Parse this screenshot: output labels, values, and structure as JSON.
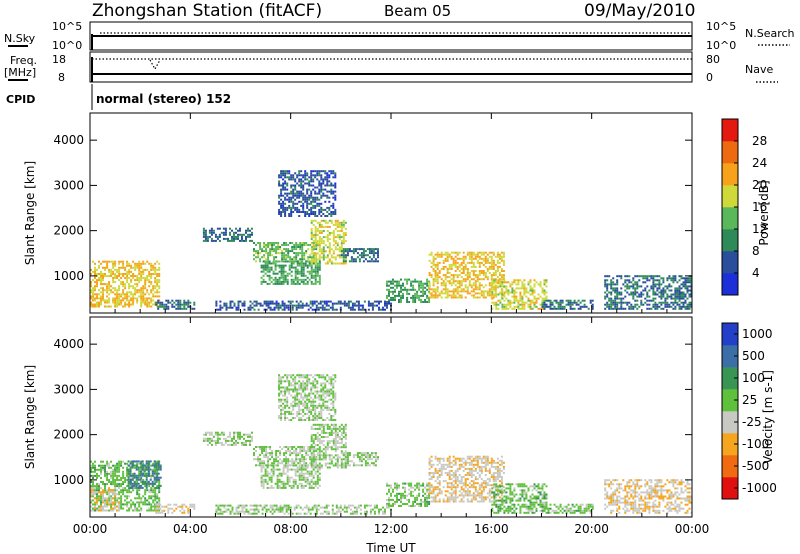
{
  "header": {
    "station": "Zhongshan Station (fitACF)",
    "beam": "Beam 05",
    "date": "09/May/2010"
  },
  "parameter_panel": {
    "nsky_label": "N.Sky",
    "nsearch_label": "N.Search",
    "freq_label_1": "Freq.",
    "freq_label_2": "[MHz]",
    "nave_label": "Nave",
    "cpid_label": "CPID",
    "cpid_value": "normal (stereo) 152",
    "nsky_ticks": [
      "10^5",
      "10^0"
    ],
    "nsearch_ticks": [
      "10^5",
      "10^0"
    ],
    "freq_ticks": [
      "18",
      "8"
    ],
    "nave_ticks": [
      "80",
      "0"
    ]
  },
  "colors": {
    "power_scale": [
      "#1d2fd8",
      "#2a4d9c",
      "#2e8a58",
      "#5ab85a",
      "#cfd93a",
      "#f7a21a",
      "#ee6a10",
      "#e41a10"
    ],
    "velocity_scale": [
      "#e01010",
      "#f06a12",
      "#f5a51e",
      "#c9c9c4",
      "#5fc03c",
      "#3a9555",
      "#3c6fa8",
      "#2440c8"
    ]
  },
  "chart_data": [
    {
      "type": "heatmap",
      "title": "",
      "xlabel": "",
      "ylabel": "Slant Range [km]",
      "x_tick_labels": [
        "00:00",
        "04:00",
        "08:00",
        "12:00",
        "16:00",
        "20:00",
        "00:00"
      ],
      "y_tick_labels": [
        "1000",
        "2000",
        "3000",
        "4000"
      ],
      "xlim": [
        0,
        24
      ],
      "ylim": [
        180,
        4600
      ],
      "colorbar": {
        "label": "Power [dB]",
        "ticks": [
          "4",
          "8",
          "12",
          "16",
          "20",
          "24",
          "28"
        ],
        "range": [
          0,
          32
        ]
      },
      "regions": [
        {
          "t0": 0.0,
          "t1": 2.8,
          "r0": 300,
          "r1": 1300,
          "value": 20
        },
        {
          "t0": 2.6,
          "t1": 4.2,
          "r0": 250,
          "r1": 450,
          "value": 8
        },
        {
          "t0": 4.5,
          "t1": 6.5,
          "r0": 1750,
          "r1": 2050,
          "value": 8
        },
        {
          "t0": 6.5,
          "t1": 9.0,
          "r0": 1300,
          "r1": 1750,
          "value": 14
        },
        {
          "t0": 6.8,
          "t1": 9.2,
          "r0": 800,
          "r1": 1300,
          "value": 12
        },
        {
          "t0": 8.8,
          "t1": 10.2,
          "r0": 1250,
          "r1": 2200,
          "value": 18
        },
        {
          "t0": 10.0,
          "t1": 11.5,
          "r0": 1300,
          "r1": 1600,
          "value": 8
        },
        {
          "t0": 11.8,
          "t1": 13.5,
          "r0": 400,
          "r1": 900,
          "value": 12
        },
        {
          "t0": 13.5,
          "t1": 16.5,
          "r0": 500,
          "r1": 1500,
          "value": 20
        },
        {
          "t0": 16.0,
          "t1": 18.2,
          "r0": 250,
          "r1": 900,
          "value": 18
        },
        {
          "t0": 18.0,
          "t1": 20.0,
          "r0": 250,
          "r1": 450,
          "value": 8
        },
        {
          "t0": 20.5,
          "t1": 24.0,
          "r0": 250,
          "r1": 1000,
          "value": 8
        },
        {
          "t0": 7.5,
          "t1": 9.8,
          "r0": 2300,
          "r1": 3300,
          "value": 6
        },
        {
          "t0": 5.0,
          "t1": 12.0,
          "r0": 230,
          "r1": 420,
          "value": 6
        }
      ]
    },
    {
      "type": "heatmap",
      "title": "",
      "xlabel": "Time UT",
      "ylabel": "Slant Range [km]",
      "x_tick_labels": [
        "00:00",
        "04:00",
        "08:00",
        "12:00",
        "16:00",
        "20:00",
        "00:00"
      ],
      "y_tick_labels": [
        "1000",
        "2000",
        "3000",
        "4000"
      ],
      "xlim": [
        0,
        24
      ],
      "ylim": [
        180,
        4600
      ],
      "colorbar": {
        "label": "Velocity [m s-1]",
        "ticks": [
          "-1000",
          "-500",
          "-100",
          "-25",
          "25",
          "100",
          "500",
          "1000"
        ],
        "range": [
          -1500,
          1500
        ]
      },
      "regions": [
        {
          "t0": 0.0,
          "t1": 2.8,
          "r0": 300,
          "r1": 1400,
          "value": 200
        },
        {
          "t0": 0.0,
          "t1": 1.2,
          "r0": 300,
          "r1": 800,
          "value": -300
        },
        {
          "t0": 1.5,
          "t1": 2.8,
          "r0": 800,
          "r1": 1400,
          "value": 800
        },
        {
          "t0": 2.6,
          "t1": 4.2,
          "r0": 250,
          "r1": 450,
          "value": -300
        },
        {
          "t0": 4.5,
          "t1": 6.5,
          "r0": 1750,
          "r1": 2050,
          "value": 0
        },
        {
          "t0": 6.5,
          "t1": 9.0,
          "r0": 1300,
          "r1": 1750,
          "value": 0
        },
        {
          "t0": 6.8,
          "t1": 9.2,
          "r0": 800,
          "r1": 1300,
          "value": 0
        },
        {
          "t0": 8.8,
          "t1": 10.2,
          "r0": 1250,
          "r1": 2200,
          "value": 0
        },
        {
          "t0": 10.0,
          "t1": 11.5,
          "r0": 1300,
          "r1": 1600,
          "value": 0
        },
        {
          "t0": 11.8,
          "t1": 13.5,
          "r0": 400,
          "r1": 900,
          "value": 150
        },
        {
          "t0": 13.5,
          "t1": 16.5,
          "r0": 500,
          "r1": 1500,
          "value": -300
        },
        {
          "t0": 16.0,
          "t1": 18.2,
          "r0": 250,
          "r1": 900,
          "value": 200
        },
        {
          "t0": 18.0,
          "t1": 20.0,
          "r0": 250,
          "r1": 450,
          "value": 150
        },
        {
          "t0": 20.5,
          "t1": 24.0,
          "r0": 250,
          "r1": 1000,
          "value": -300
        },
        {
          "t0": 7.5,
          "t1": 9.8,
          "r0": 2300,
          "r1": 3300,
          "value": 0
        },
        {
          "t0": 5.0,
          "t1": 12.0,
          "r0": 230,
          "r1": 420,
          "value": 0
        }
      ]
    }
  ]
}
